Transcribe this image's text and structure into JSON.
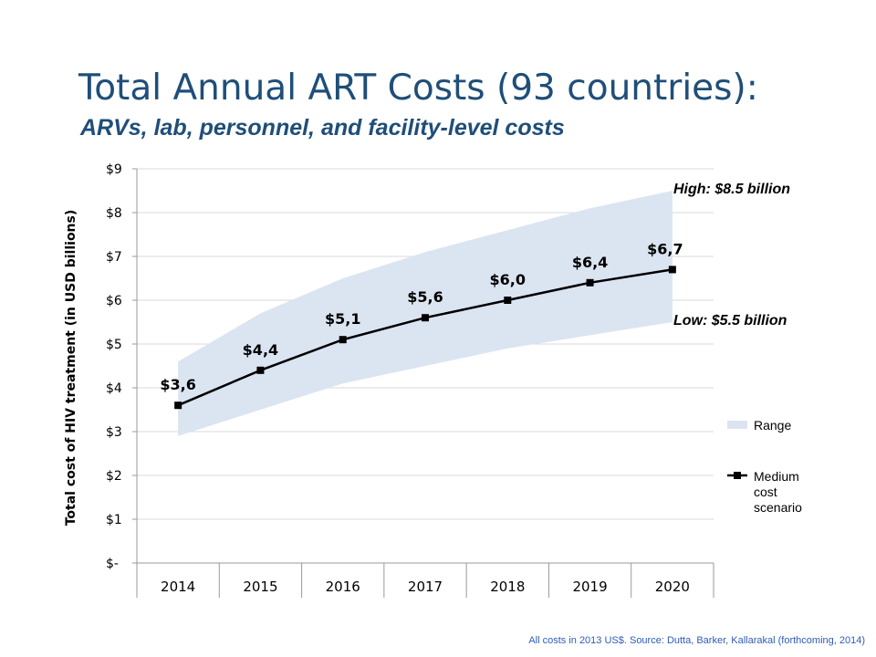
{
  "slide": {
    "title": "Total Annual ART Costs (93 countries):",
    "subtitle": "ARVs, lab, personnel, and facility-level costs",
    "source": "All costs in 2013 US$. Source: Dutta, Barker, Kallarakal (forthcoming, 2014)"
  },
  "chart_data": {
    "type": "line",
    "ylabel": "Total cost of HIV treatment (in USD billions)",
    "xlabel": "",
    "categories": [
      "2014",
      "2015",
      "2016",
      "2017",
      "2018",
      "2019",
      "2020"
    ],
    "ylim": [
      0,
      9
    ],
    "yticks": [
      0,
      1,
      2,
      3,
      4,
      5,
      6,
      7,
      8,
      9
    ],
    "ytick_labels": [
      "$-",
      "$1",
      "$2",
      "$3",
      "$4",
      "$5",
      "$6",
      "$7",
      "$8",
      "$9"
    ],
    "grid": "horizontal",
    "legend_position": "right",
    "series": [
      {
        "name": "Medium cost scenario",
        "type": "line",
        "color": "#000000",
        "values": [
          3.6,
          4.4,
          5.1,
          5.6,
          6.0,
          6.4,
          6.7
        ],
        "data_labels": [
          "$3,6",
          "$4,4",
          "$5,1",
          "$5,6",
          "$6,0",
          "$6,4",
          "$6,7"
        ]
      },
      {
        "name": "Range",
        "type": "area-band",
        "color": "#dbe5f1",
        "low": [
          2.9,
          3.5,
          4.1,
          4.5,
          4.9,
          5.2,
          5.5
        ],
        "high": [
          4.6,
          5.7,
          6.5,
          7.1,
          7.6,
          8.1,
          8.5
        ]
      }
    ],
    "annotations": [
      {
        "text": "High: $8.5 billion"
      },
      {
        "text": "Low: $5.5 billion"
      }
    ],
    "legend": [
      {
        "label": "Range",
        "symbol": "band",
        "color": "#dbe5f1"
      },
      {
        "label": "Medium cost scenario",
        "symbol": "line-marker",
        "color": "#000000"
      }
    ]
  }
}
